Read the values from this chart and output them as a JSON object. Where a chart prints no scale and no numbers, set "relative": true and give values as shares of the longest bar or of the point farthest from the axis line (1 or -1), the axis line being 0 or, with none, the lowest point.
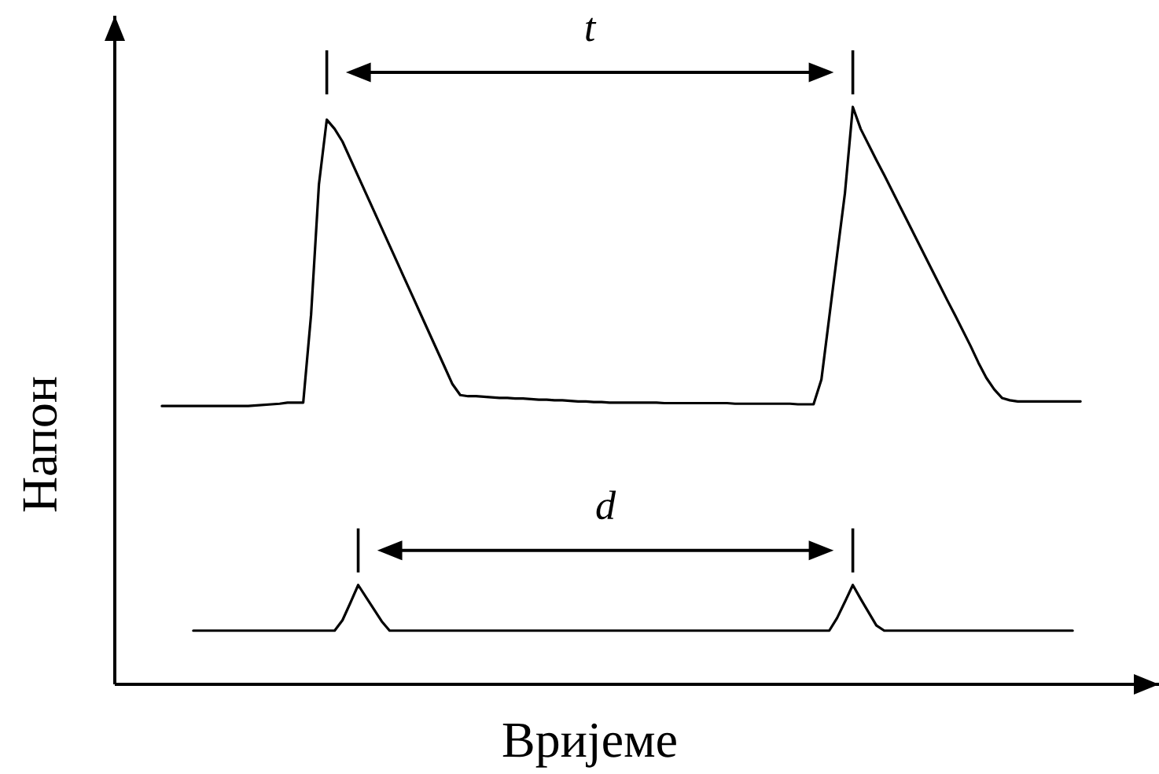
{
  "chart_data": {
    "type": "line",
    "xlabel": "Вријеме",
    "ylabel": "Напон",
    "annotations": [
      "t",
      "d"
    ],
    "relative": true,
    "categories": [
      null,
      null,
      null,
      null,
      null,
      null,
      null,
      null,
      null,
      null,
      null,
      null,
      null,
      null,
      null,
      null,
      null,
      null,
      null,
      null,
      null,
      null,
      null,
      null,
      null,
      null,
      null,
      null,
      null,
      null,
      null,
      null,
      null,
      null,
      null,
      null,
      null,
      null,
      null,
      null,
      null,
      null,
      null,
      null,
      null,
      null,
      null,
      null,
      null,
      null,
      null,
      null,
      null,
      null,
      null,
      null,
      null,
      null,
      null,
      null,
      null,
      null,
      null,
      null,
      null,
      null,
      null,
      null,
      null,
      null,
      null,
      null,
      null,
      null,
      null,
      null,
      null,
      null,
      null,
      null,
      null,
      null,
      null,
      null,
      null,
      null,
      null,
      null,
      null,
      null,
      null,
      null,
      null,
      null,
      null,
      null,
      null,
      null,
      null,
      null,
      null,
      null,
      null,
      null,
      null,
      null,
      null,
      null,
      null,
      null,
      null,
      null,
      null,
      null,
      null,
      null,
      null,
      null,
      null,
      null,
      null,
      null,
      null,
      null,
      null,
      null,
      null,
      null,
      null,
      null,
      null,
      null,
      null,
      null
    ],
    "series": [
      {
        "color": "#000000",
        "values": [
          null,
          null,
          null,
          null,
          null,
          null,
          0.482,
          0.482,
          0.482,
          0.482,
          0.482,
          0.482,
          0.482,
          0.482,
          0.482,
          0.482,
          0.482,
          0.482,
          0.483,
          0.484,
          0.485,
          0.486,
          0.488,
          0.488,
          0.488,
          0.64,
          0.866,
          0.978,
          0.962,
          0.94,
          0.91,
          0.88,
          0.85,
          0.82,
          0.79,
          0.76,
          0.73,
          0.7,
          0.67,
          0.64,
          0.61,
          0.58,
          0.55,
          0.52,
          0.501,
          0.499,
          0.499,
          0.498,
          0.497,
          0.496,
          0.496,
          0.495,
          0.495,
          0.494,
          0.493,
          0.493,
          0.492,
          0.492,
          0.491,
          0.49,
          0.49,
          0.489,
          0.489,
          0.488,
          0.488,
          0.488,
          0.488,
          0.488,
          0.488,
          0.488,
          0.487,
          0.487,
          0.487,
          0.487,
          0.487,
          0.487,
          0.487,
          0.487,
          0.487,
          0.486,
          0.486,
          0.486,
          0.486,
          0.486,
          0.486,
          0.486,
          0.486,
          0.485,
          0.485,
          0.485,
          0.528,
          0.636,
          0.744,
          0.851,
          1.0,
          0.962,
          0.935,
          0.908,
          0.882,
          0.855,
          0.828,
          0.801,
          0.774,
          0.747,
          0.72,
          0.693,
          0.666,
          0.64,
          0.613,
          0.586,
          0.557,
          0.531,
          0.511,
          0.496,
          0.492,
          0.49,
          0.49,
          0.49,
          0.49,
          0.49,
          0.49,
          0.49,
          0.49,
          0.49,
          null,
          null,
          null,
          null,
          null,
          null,
          null,
          null,
          null,
          null
        ]
      },
      {
        "color": "#000000",
        "values": [
          null,
          null,
          null,
          null,
          null,
          null,
          null,
          null,
          null,
          null,
          0.093,
          0.093,
          0.093,
          0.093,
          0.093,
          0.093,
          0.093,
          0.093,
          0.093,
          0.093,
          0.093,
          0.093,
          0.093,
          0.093,
          0.093,
          0.093,
          0.093,
          0.093,
          0.093,
          0.111,
          0.141,
          0.172,
          0.151,
          0.13,
          0.109,
          0.093,
          0.093,
          0.093,
          0.093,
          0.093,
          0.093,
          0.093,
          0.093,
          0.093,
          0.093,
          0.093,
          0.093,
          0.093,
          0.093,
          0.093,
          0.093,
          0.093,
          0.093,
          0.093,
          0.093,
          0.093,
          0.093,
          0.093,
          0.093,
          0.093,
          0.093,
          0.093,
          0.093,
          0.093,
          0.093,
          0.093,
          0.093,
          0.093,
          0.093,
          0.093,
          0.093,
          0.093,
          0.093,
          0.093,
          0.093,
          0.093,
          0.093,
          0.093,
          0.093,
          0.093,
          0.093,
          0.093,
          0.093,
          0.093,
          0.093,
          0.093,
          0.093,
          0.093,
          0.093,
          0.093,
          0.093,
          0.093,
          0.115,
          0.143,
          0.172,
          0.148,
          0.125,
          0.102,
          0.093,
          0.093,
          0.093,
          0.093,
          0.093,
          0.093,
          0.093,
          0.093,
          0.093,
          0.093,
          0.093,
          0.093,
          0.093,
          0.093,
          0.093,
          0.093,
          0.093,
          0.093,
          0.093,
          0.093,
          0.093,
          0.093,
          0.093,
          0.093,
          0.093,
          null,
          null,
          null,
          null,
          null,
          null,
          null,
          null,
          null,
          null,
          null
        ]
      }
    ]
  }
}
